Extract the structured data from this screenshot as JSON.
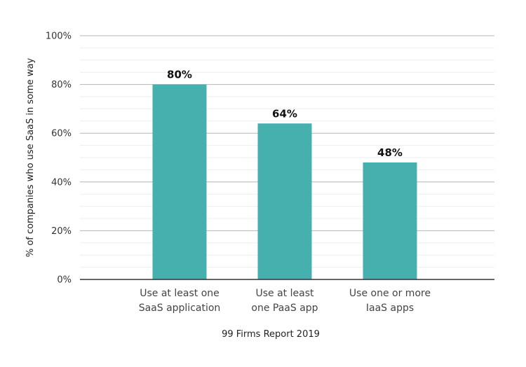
{
  "chart_data": {
    "type": "bar",
    "categories": [
      [
        "Use at least one",
        "SaaS application"
      ],
      [
        "Use at least",
        "one PaaS app"
      ],
      [
        "Use one or more",
        "IaaS apps"
      ]
    ],
    "values": [
      80,
      64,
      48
    ],
    "data_labels": [
      "80%",
      "64%",
      "48%"
    ],
    "title": "",
    "xlabel": "99 Firms Report 2019",
    "ylabel": "% of companies who use SaaS in some way",
    "ylim": [
      0,
      100
    ],
    "yticks": [
      0,
      20,
      40,
      60,
      80,
      100
    ],
    "ytick_labels": [
      "0%",
      "20%",
      "40%",
      "60%",
      "80%",
      "100%"
    ],
    "grid": true,
    "legend": "none",
    "bar_color": "#45B0AE"
  }
}
